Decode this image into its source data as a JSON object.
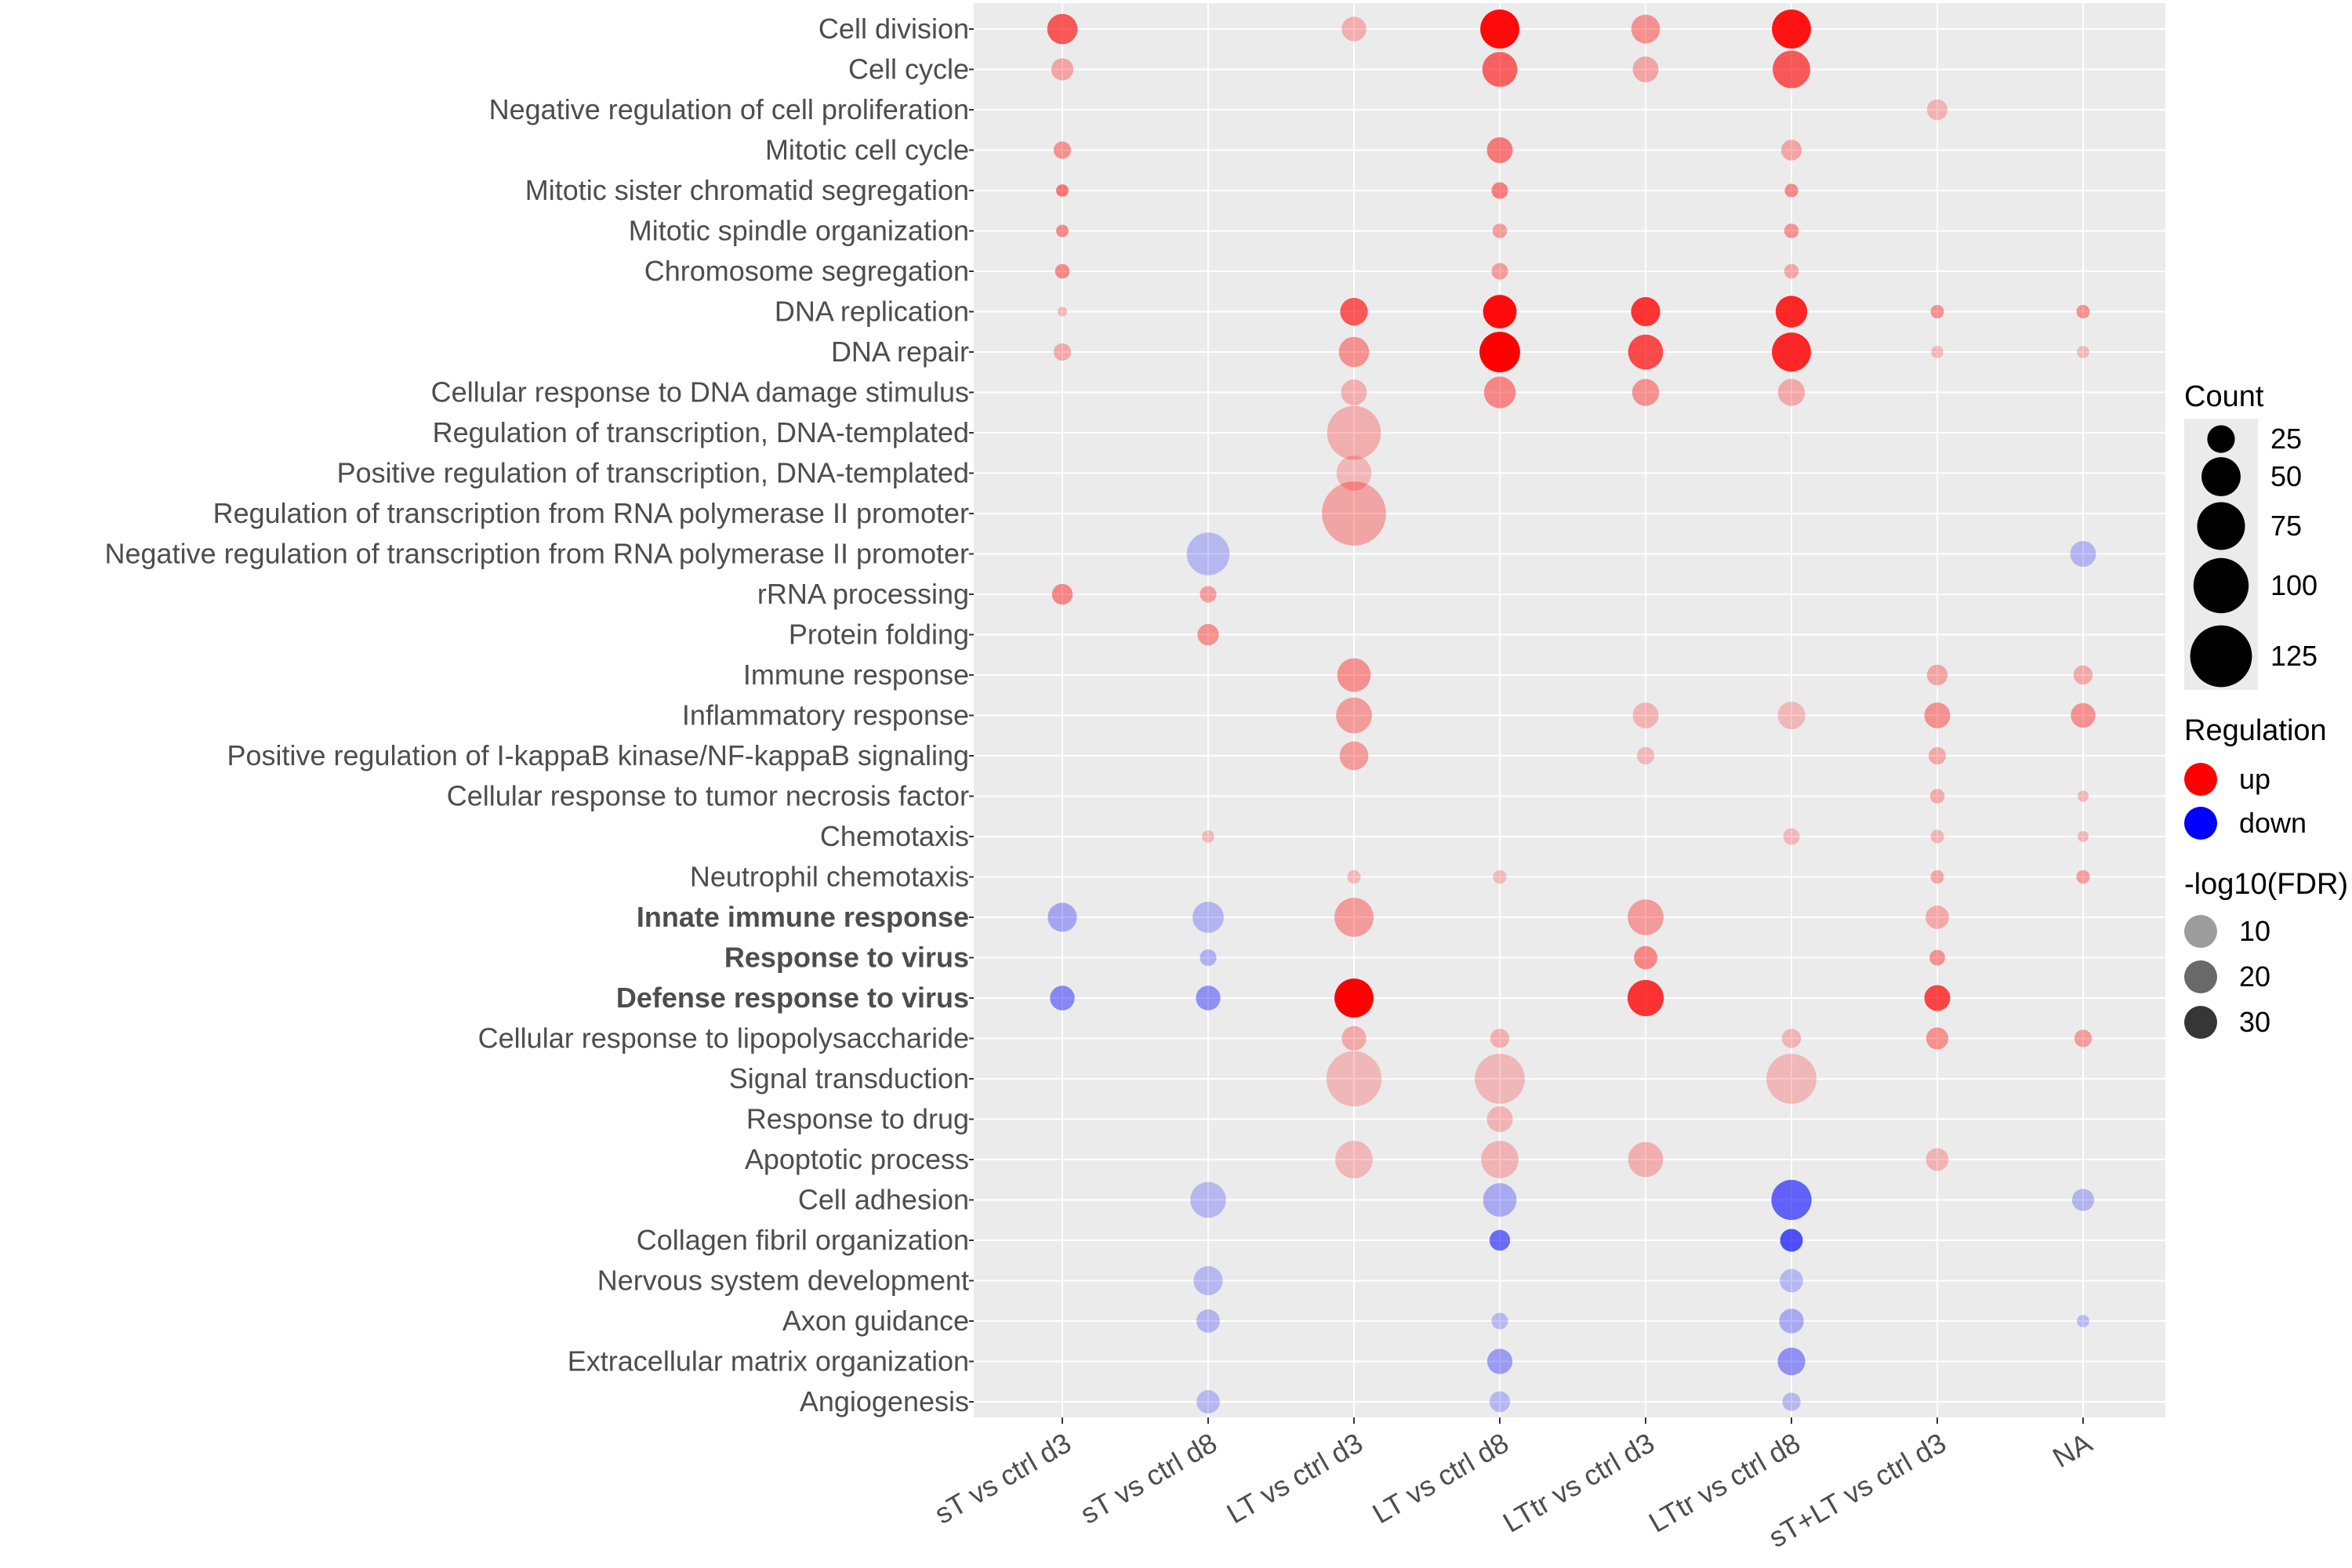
{
  "chart_data": {
    "type": "bubble",
    "categories_x": [
      "sT vs ctrl d3",
      "sT vs ctrl d8",
      "LT vs ctrl d3",
      "LT vs ctrl d8",
      "LTtr vs ctrl d3",
      "LTtr vs ctrl d8",
      "sT+LT vs ctrl d3",
      "NA"
    ],
    "categories_y": [
      "Cell division",
      "Cell cycle",
      "Negative regulation of cell proliferation",
      "Mitotic cell cycle",
      "Mitotic sister chromatid segregation",
      "Mitotic spindle organization",
      "Chromosome segregation",
      "DNA replication",
      "DNA repair",
      "Cellular response to DNA damage stimulus",
      "Regulation of transcription, DNA-templated",
      "Positive regulation of transcription, DNA-templated",
      "Regulation of transcription from RNA polymerase II promoter",
      "Negative regulation of transcription from RNA polymerase II promoter",
      "rRNA processing",
      "Protein folding",
      "Immune response",
      "Inflammatory response",
      "Positive regulation of I-kappaB kinase/NF-kappaB signaling",
      "Cellular response to tumor necrosis factor",
      "Chemotaxis",
      "Neutrophil chemotaxis",
      "Innate immune response",
      "Response to virus",
      "Defense response to virus",
      "Cellular response to lipopolysaccharide",
      "Signal transduction",
      "Response to drug",
      "Apoptotic process",
      "Cell adhesion",
      "Collagen fibril organization",
      "Nervous system development",
      "Axon guidance",
      "Extracellular matrix organization",
      "Angiogenesis"
    ],
    "bold_terms": [
      "Innate immune response",
      "Response to virus",
      "Defense response to virus"
    ],
    "regulation_colors": {
      "up": "#ff0000",
      "down": "#0000ff"
    },
    "points": [
      {
        "y": "Cell division",
        "x": "sT vs ctrl d3",
        "count": 30,
        "reg": "up",
        "fdr": 22
      },
      {
        "y": "Cell division",
        "x": "LT vs ctrl d3",
        "count": 20,
        "reg": "up",
        "fdr": 4
      },
      {
        "y": "Cell division",
        "x": "LT vs ctrl d8",
        "count": 50,
        "reg": "up",
        "fdr": 38
      },
      {
        "y": "Cell division",
        "x": "LTtr vs ctrl d3",
        "count": 27,
        "reg": "up",
        "fdr": 10
      },
      {
        "y": "Cell division",
        "x": "LTtr vs ctrl d8",
        "count": 50,
        "reg": "up",
        "fdr": 36
      },
      {
        "y": "Cell cycle",
        "x": "sT vs ctrl d3",
        "count": 16,
        "reg": "up",
        "fdr": 6
      },
      {
        "y": "Cell cycle",
        "x": "LT vs ctrl d8",
        "count": 40,
        "reg": "up",
        "fdr": 20
      },
      {
        "y": "Cell cycle",
        "x": "LTtr vs ctrl d3",
        "count": 22,
        "reg": "up",
        "fdr": 6
      },
      {
        "y": "Cell cycle",
        "x": "LTtr vs ctrl d8",
        "count": 46,
        "reg": "up",
        "fdr": 22
      },
      {
        "y": "Negative regulation of cell proliferation",
        "x": "sT+LT vs ctrl d3",
        "count": 14,
        "reg": "up",
        "fdr": 3
      },
      {
        "y": "Mitotic cell cycle",
        "x": "sT vs ctrl d3",
        "count": 10,
        "reg": "up",
        "fdr": 10
      },
      {
        "y": "Mitotic cell cycle",
        "x": "LT vs ctrl d8",
        "count": 22,
        "reg": "up",
        "fdr": 15
      },
      {
        "y": "Mitotic cell cycle",
        "x": "LTtr vs ctrl d8",
        "count": 14,
        "reg": "up",
        "fdr": 6
      },
      {
        "y": "Mitotic sister chromatid segregation",
        "x": "sT vs ctrl d3",
        "count": 5,
        "reg": "up",
        "fdr": 16
      },
      {
        "y": "Mitotic sister chromatid segregation",
        "x": "LT vs ctrl d8",
        "count": 9,
        "reg": "up",
        "fdr": 14
      },
      {
        "y": "Mitotic sister chromatid segregation",
        "x": "LTtr vs ctrl d8",
        "count": 6,
        "reg": "up",
        "fdr": 12
      },
      {
        "y": "Mitotic spindle organization",
        "x": "sT vs ctrl d3",
        "count": 5,
        "reg": "up",
        "fdr": 12
      },
      {
        "y": "Mitotic spindle organization",
        "x": "LT vs ctrl d8",
        "count": 7,
        "reg": "up",
        "fdr": 8
      },
      {
        "y": "Mitotic spindle organization",
        "x": "LTtr vs ctrl d8",
        "count": 7,
        "reg": "up",
        "fdr": 10
      },
      {
        "y": "Chromosome segregation",
        "x": "sT vs ctrl d3",
        "count": 7,
        "reg": "up",
        "fdr": 12
      },
      {
        "y": "Chromosome segregation",
        "x": "LT vs ctrl d8",
        "count": 9,
        "reg": "up",
        "fdr": 8
      },
      {
        "y": "Chromosome segregation",
        "x": "LTtr vs ctrl d8",
        "count": 7,
        "reg": "up",
        "fdr": 6
      },
      {
        "y": "DNA replication",
        "x": "sT vs ctrl d3",
        "count": 3,
        "reg": "up",
        "fdr": 3
      },
      {
        "y": "DNA replication",
        "x": "LT vs ctrl d3",
        "count": 25,
        "reg": "up",
        "fdr": 22
      },
      {
        "y": "DNA replication",
        "x": "LT vs ctrl d8",
        "count": 37,
        "reg": "up",
        "fdr": 38
      },
      {
        "y": "DNA replication",
        "x": "LTtr vs ctrl d3",
        "count": 28,
        "reg": "up",
        "fdr": 30
      },
      {
        "y": "DNA replication",
        "x": "LTtr vs ctrl d8",
        "count": 33,
        "reg": "up",
        "fdr": 32
      },
      {
        "y": "DNA replication",
        "x": "sT+LT vs ctrl d3",
        "count": 6,
        "reg": "up",
        "fdr": 10
      },
      {
        "y": "DNA replication",
        "x": "NA",
        "count": 6,
        "reg": "up",
        "fdr": 10
      },
      {
        "y": "DNA repair",
        "x": "sT vs ctrl d3",
        "count": 10,
        "reg": "up",
        "fdr": 5
      },
      {
        "y": "DNA repair",
        "x": "LT vs ctrl d3",
        "count": 30,
        "reg": "up",
        "fdr": 10
      },
      {
        "y": "DNA repair",
        "x": "LT vs ctrl d8",
        "count": 54,
        "reg": "up",
        "fdr": 40
      },
      {
        "y": "DNA repair",
        "x": "LTtr vs ctrl d3",
        "count": 40,
        "reg": "up",
        "fdr": 25
      },
      {
        "y": "DNA repair",
        "x": "LTtr vs ctrl d8",
        "count": 50,
        "reg": "up",
        "fdr": 32
      },
      {
        "y": "DNA repair",
        "x": "sT+LT vs ctrl d3",
        "count": 5,
        "reg": "up",
        "fdr": 2
      },
      {
        "y": "DNA repair",
        "x": "NA",
        "count": 5,
        "reg": "up",
        "fdr": 2
      },
      {
        "y": "Cellular response to DNA damage stimulus",
        "x": "LT vs ctrl d3",
        "count": 22,
        "reg": "up",
        "fdr": 4
      },
      {
        "y": "Cellular response to DNA damage stimulus",
        "x": "LT vs ctrl d8",
        "count": 33,
        "reg": "up",
        "fdr": 12
      },
      {
        "y": "Cellular response to DNA damage stimulus",
        "x": "LTtr vs ctrl d3",
        "count": 24,
        "reg": "up",
        "fdr": 10
      },
      {
        "y": "Cellular response to DNA damage stimulus",
        "x": "LTtr vs ctrl d8",
        "count": 24,
        "reg": "up",
        "fdr": 5
      },
      {
        "y": "Regulation of transcription, DNA-templated",
        "x": "LT vs ctrl d3",
        "count": 95,
        "reg": "up",
        "fdr": 4
      },
      {
        "y": "Positive regulation of transcription, DNA-templated",
        "x": "LT vs ctrl d3",
        "count": 40,
        "reg": "up",
        "fdr": 2
      },
      {
        "y": "Regulation of transcription from RNA polymerase II promoter",
        "x": "LT vs ctrl d3",
        "count": 135,
        "reg": "up",
        "fdr": 6
      },
      {
        "y": "Negative regulation of transcription from RNA polymerase II promoter",
        "x": "sT vs ctrl d8",
        "count": 60,
        "reg": "down",
        "fdr": 2
      },
      {
        "y": "Negative regulation of transcription from RNA polymerase II promoter",
        "x": "NA",
        "count": 22,
        "reg": "down",
        "fdr": 3
      },
      {
        "y": "rRNA processing",
        "x": "sT vs ctrl d3",
        "count": 14,
        "reg": "up",
        "fdr": 12
      },
      {
        "y": "rRNA processing",
        "x": "sT vs ctrl d8",
        "count": 9,
        "reg": "up",
        "fdr": 8
      },
      {
        "y": "Protein folding",
        "x": "sT vs ctrl d8",
        "count": 15,
        "reg": "up",
        "fdr": 10
      },
      {
        "y": "Immune response",
        "x": "LT vs ctrl d3",
        "count": 37,
        "reg": "up",
        "fdr": 10
      },
      {
        "y": "Immune response",
        "x": "sT+LT vs ctrl d3",
        "count": 14,
        "reg": "up",
        "fdr": 6
      },
      {
        "y": "Immune response",
        "x": "NA",
        "count": 12,
        "reg": "up",
        "fdr": 5
      },
      {
        "y": "Inflammatory response",
        "x": "LT vs ctrl d3",
        "count": 42,
        "reg": "up",
        "fdr": 8
      },
      {
        "y": "Inflammatory response",
        "x": "LTtr vs ctrl d3",
        "count": 22,
        "reg": "up",
        "fdr": 3
      },
      {
        "y": "Inflammatory response",
        "x": "LTtr vs ctrl d8",
        "count": 25,
        "reg": "up",
        "fdr": 2
      },
      {
        "y": "Inflammatory response",
        "x": "sT+LT vs ctrl d3",
        "count": 22,
        "reg": "up",
        "fdr": 10
      },
      {
        "y": "Inflammatory response",
        "x": "NA",
        "count": 20,
        "reg": "up",
        "fdr": 10
      },
      {
        "y": "Positive regulation of I-kappaB kinase/NF-kappaB signaling",
        "x": "LT vs ctrl d3",
        "count": 27,
        "reg": "up",
        "fdr": 8
      },
      {
        "y": "Positive regulation of I-kappaB kinase/NF-kappaB signaling",
        "x": "LTtr vs ctrl d3",
        "count": 10,
        "reg": "up",
        "fdr": 2
      },
      {
        "y": "Positive regulation of I-kappaB kinase/NF-kappaB signaling",
        "x": "sT+LT vs ctrl d3",
        "count": 10,
        "reg": "up",
        "fdr": 5
      },
      {
        "y": "Cellular response to tumor necrosis factor",
        "x": "sT+LT vs ctrl d3",
        "count": 7,
        "reg": "up",
        "fdr": 5
      },
      {
        "y": "Cellular response to tumor necrosis factor",
        "x": "NA",
        "count": 4,
        "reg": "up",
        "fdr": 3
      },
      {
        "y": "Chemotaxis",
        "x": "sT vs ctrl d8",
        "count": 5,
        "reg": "up",
        "fdr": 2
      },
      {
        "y": "Chemotaxis",
        "x": "LTtr vs ctrl d8",
        "count": 9,
        "reg": "up",
        "fdr": 2
      },
      {
        "y": "Chemotaxis",
        "x": "sT+LT vs ctrl d3",
        "count": 6,
        "reg": "up",
        "fdr": 3
      },
      {
        "y": "Chemotaxis",
        "x": "NA",
        "count": 4,
        "reg": "up",
        "fdr": 3
      },
      {
        "y": "Neutrophil chemotaxis",
        "x": "LT vs ctrl d3",
        "count": 6,
        "reg": "up",
        "fdr": 2
      },
      {
        "y": "Neutrophil chemotaxis",
        "x": "LT vs ctrl d8",
        "count": 6,
        "reg": "up",
        "fdr": 2
      },
      {
        "y": "Neutrophil chemotaxis",
        "x": "sT+LT vs ctrl d3",
        "count": 6,
        "reg": "up",
        "fdr": 6
      },
      {
        "y": "Neutrophil chemotaxis",
        "x": "NA",
        "count": 6,
        "reg": "up",
        "fdr": 8
      },
      {
        "y": "Innate immune response",
        "x": "sT vs ctrl d3",
        "count": 28,
        "reg": "down",
        "fdr": 6
      },
      {
        "y": "Innate immune response",
        "x": "sT vs ctrl d8",
        "count": 32,
        "reg": "down",
        "fdr": 3
      },
      {
        "y": "Innate immune response",
        "x": "LT vs ctrl d3",
        "count": 50,
        "reg": "up",
        "fdr": 8
      },
      {
        "y": "Innate immune response",
        "x": "LTtr vs ctrl d3",
        "count": 42,
        "reg": "up",
        "fdr": 8
      },
      {
        "y": "Innate immune response",
        "x": "sT+LT vs ctrl d3",
        "count": 18,
        "reg": "up",
        "fdr": 5
      },
      {
        "y": "Response to virus",
        "x": "sT vs ctrl d8",
        "count": 9,
        "reg": "down",
        "fdr": 4
      },
      {
        "y": "Response to virus",
        "x": "LTtr vs ctrl d3",
        "count": 18,
        "reg": "up",
        "fdr": 12
      },
      {
        "y": "Response to virus",
        "x": "sT+LT vs ctrl d3",
        "count": 8,
        "reg": "up",
        "fdr": 10
      },
      {
        "y": "Defense response to virus",
        "x": "sT vs ctrl d3",
        "count": 20,
        "reg": "down",
        "fdr": 12
      },
      {
        "y": "Defense response to virus",
        "x": "sT vs ctrl d8",
        "count": 20,
        "reg": "down",
        "fdr": 10
      },
      {
        "y": "Defense response to virus",
        "x": "LT vs ctrl d3",
        "count": 50,
        "reg": "up",
        "fdr": 40
      },
      {
        "y": "Defense response to virus",
        "x": "LTtr vs ctrl d3",
        "count": 43,
        "reg": "up",
        "fdr": 30
      },
      {
        "y": "Defense response to virus",
        "x": "sT+LT vs ctrl d3",
        "count": 22,
        "reg": "up",
        "fdr": 26
      },
      {
        "y": "Cellular response to lipopolysaccharide",
        "x": "LT vs ctrl d3",
        "count": 20,
        "reg": "up",
        "fdr": 5
      },
      {
        "y": "Cellular response to lipopolysaccharide",
        "x": "LT vs ctrl d8",
        "count": 12,
        "reg": "up",
        "fdr": 4
      },
      {
        "y": "Cellular response to lipopolysaccharide",
        "x": "LTtr vs ctrl d8",
        "count": 12,
        "reg": "up",
        "fdr": 3
      },
      {
        "y": "Cellular response to lipopolysaccharide",
        "x": "sT+LT vs ctrl d3",
        "count": 16,
        "reg": "up",
        "fdr": 10
      },
      {
        "y": "Cellular response to lipopolysaccharide",
        "x": "NA",
        "count": 10,
        "reg": "up",
        "fdr": 8
      },
      {
        "y": "Signal transduction",
        "x": "LT vs ctrl d3",
        "count": 100,
        "reg": "up",
        "fdr": 2
      },
      {
        "y": "Signal transduction",
        "x": "LT vs ctrl d8",
        "count": 82,
        "reg": "up",
        "fdr": 2
      },
      {
        "y": "Signal transduction",
        "x": "LTtr vs ctrl d8",
        "count": 82,
        "reg": "up",
        "fdr": 2
      },
      {
        "y": "Response to drug",
        "x": "LT vs ctrl d8",
        "count": 22,
        "reg": "up",
        "fdr": 3
      },
      {
        "y": "Apoptotic process",
        "x": "LT vs ctrl d3",
        "count": 46,
        "reg": "up",
        "fdr": 2
      },
      {
        "y": "Apoptotic process",
        "x": "LT vs ctrl d8",
        "count": 46,
        "reg": "up",
        "fdr": 3
      },
      {
        "y": "Apoptotic process",
        "x": "LTtr vs ctrl d3",
        "count": 40,
        "reg": "up",
        "fdr": 4
      },
      {
        "y": "Apoptotic process",
        "x": "sT+LT vs ctrl d3",
        "count": 17,
        "reg": "up",
        "fdr": 3
      },
      {
        "y": "Cell adhesion",
        "x": "sT vs ctrl d8",
        "count": 42,
        "reg": "down",
        "fdr": 2
      },
      {
        "y": "Cell adhesion",
        "x": "LT vs ctrl d8",
        "count": 37,
        "reg": "down",
        "fdr": 5
      },
      {
        "y": "Cell adhesion",
        "x": "LTtr vs ctrl d8",
        "count": 53,
        "reg": "down",
        "fdr": 20
      },
      {
        "y": "Cell adhesion",
        "x": "NA",
        "count": 16,
        "reg": "down",
        "fdr": 3
      },
      {
        "y": "Collagen fibril organization",
        "x": "LT vs ctrl d8",
        "count": 14,
        "reg": "down",
        "fdr": 18
      },
      {
        "y": "Collagen fibril organization",
        "x": "LTtr vs ctrl d8",
        "count": 17,
        "reg": "down",
        "fdr": 24
      },
      {
        "y": "Nervous system development",
        "x": "sT vs ctrl d8",
        "count": 28,
        "reg": "down",
        "fdr": 2
      },
      {
        "y": "Nervous system development",
        "x": "LTtr vs ctrl d8",
        "count": 18,
        "reg": "down",
        "fdr": 2
      },
      {
        "y": "Axon guidance",
        "x": "sT vs ctrl d8",
        "count": 18,
        "reg": "down",
        "fdr": 3
      },
      {
        "y": "Axon guidance",
        "x": "LT vs ctrl d8",
        "count": 9,
        "reg": "down",
        "fdr": 2
      },
      {
        "y": "Axon guidance",
        "x": "LTtr vs ctrl d8",
        "count": 20,
        "reg": "down",
        "fdr": 5
      },
      {
        "y": "Axon guidance",
        "x": "NA",
        "count": 5,
        "reg": "down",
        "fdr": 2
      },
      {
        "y": "Extracellular matrix organization",
        "x": "LT vs ctrl d8",
        "count": 21,
        "reg": "down",
        "fdr": 8
      },
      {
        "y": "Extracellular matrix organization",
        "x": "LTtr vs ctrl d8",
        "count": 25,
        "reg": "down",
        "fdr": 10
      },
      {
        "y": "Angiogenesis",
        "x": "sT vs ctrl d8",
        "count": 18,
        "reg": "down",
        "fdr": 2
      },
      {
        "y": "Angiogenesis",
        "x": "LT vs ctrl d8",
        "count": 14,
        "reg": "down",
        "fdr": 2
      },
      {
        "y": "Angiogenesis",
        "x": "LTtr vs ctrl d8",
        "count": 11,
        "reg": "down",
        "fdr": 2
      }
    ],
    "legend": {
      "count": {
        "title": "Count",
        "entries": [
          25,
          50,
          75,
          100,
          125
        ]
      },
      "regulation": {
        "title": "Regulation",
        "entries": [
          "up",
          "down"
        ]
      },
      "fdr": {
        "title": "-log10(FDR)",
        "entries": [
          10,
          20,
          30
        ]
      }
    },
    "grid": true,
    "legend_position": "right"
  }
}
